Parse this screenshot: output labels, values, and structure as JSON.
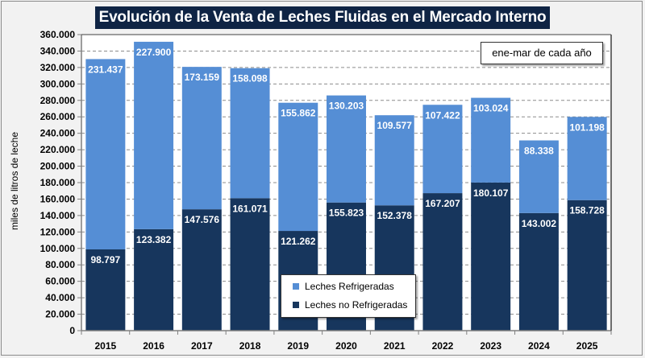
{
  "chart_data": {
    "type": "bar",
    "stacked": true,
    "title": "Evolución de la Venta de Leches Fluidas en el Mercado Interno",
    "xlabel": "",
    "ylabel": "miles de litros de leche",
    "ylim": [
      0,
      360000
    ],
    "ytick_step": 20000,
    "yticks": [
      "0",
      "20.000",
      "40.000",
      "60.000",
      "80.000",
      "100.000",
      "120.000",
      "140.000",
      "160.000",
      "180.000",
      "200.000",
      "220.000",
      "240.000",
      "260.000",
      "280.000",
      "300.000",
      "320.000",
      "340.000",
      "360.000"
    ],
    "grid": true,
    "grid_style": "dashed",
    "annotation": "ene-mar de cada año",
    "legend_position": "bottom-center",
    "categories": [
      "2015",
      "2016",
      "2017",
      "2018",
      "2019",
      "2020",
      "2021",
      "2022",
      "2023",
      "2024",
      "2025"
    ],
    "series": [
      {
        "name": "Leches no Refrigeradas",
        "color": "#17365d",
        "values": [
          98797,
          123382,
          147576,
          161071,
          121262,
          155823,
          152378,
          167207,
          180107,
          143002,
          158728
        ],
        "labels": [
          "98.797",
          "123.382",
          "147.576",
          "161.071",
          "121.262",
          "155.823",
          "152.378",
          "167.207",
          "180.107",
          "143.002",
          "158.728"
        ]
      },
      {
        "name": "Leches Refrigeradas",
        "color": "#558ed5",
        "values": [
          231437,
          227900,
          173159,
          158098,
          155862,
          130203,
          109577,
          107422,
          103024,
          88338,
          101198
        ],
        "labels": [
          "231.437",
          "227.900",
          "173.159",
          "158.098",
          "155.862",
          "130.203",
          "109.577",
          "107.422",
          "103.024",
          "88.338",
          "101.198"
        ]
      }
    ],
    "legend": [
      {
        "label": "Leches Refrigeradas",
        "color": "#558ed5"
      },
      {
        "label": "Leches no Refrigeradas",
        "color": "#17365d"
      }
    ]
  }
}
